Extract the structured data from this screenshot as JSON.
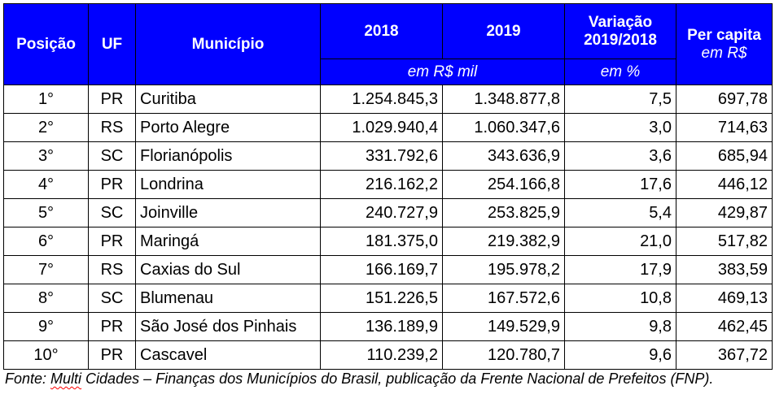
{
  "table": {
    "headers": {
      "position": "Posição",
      "uf": "UF",
      "municipality": "Município",
      "year_2018": "2018",
      "year_2019": "2019",
      "variation_line1": "Variação",
      "variation_line2": "2019/2018",
      "per_capita": "Per capita",
      "per_capita_unit": "em R$",
      "values_unit": "em R$ mil",
      "variation_unit": "em %"
    },
    "rows": [
      {
        "pos": "1°",
        "uf": "PR",
        "city": "Curitiba",
        "v2018": "1.254.845,3",
        "v2019": "1.348.877,8",
        "var": "7,5",
        "pc": "697,78"
      },
      {
        "pos": "2°",
        "uf": "RS",
        "city": "Porto Alegre",
        "v2018": "1.029.940,4",
        "v2019": "1.060.347,6",
        "var": "3,0",
        "pc": "714,63"
      },
      {
        "pos": "3°",
        "uf": "SC",
        "city": "Florianópolis",
        "v2018": "331.792,6",
        "v2019": "343.636,9",
        "var": "3,6",
        "pc": "685,94"
      },
      {
        "pos": "4°",
        "uf": "PR",
        "city": "Londrina",
        "v2018": "216.162,2",
        "v2019": "254.166,8",
        "var": "17,6",
        "pc": "446,12"
      },
      {
        "pos": "5°",
        "uf": "SC",
        "city": "Joinville",
        "v2018": "240.727,9",
        "v2019": "253.825,9",
        "var": "5,4",
        "pc": "429,87"
      },
      {
        "pos": "6°",
        "uf": "PR",
        "city": "Maringá",
        "v2018": "181.375,0",
        "v2019": "219.382,9",
        "var": "21,0",
        "pc": "517,82"
      },
      {
        "pos": "7°",
        "uf": "RS",
        "city": "Caxias do Sul",
        "v2018": "166.169,7",
        "v2019": "195.978,2",
        "var": "17,9",
        "pc": "383,59"
      },
      {
        "pos": "8°",
        "uf": "SC",
        "city": "Blumenau",
        "v2018": "151.226,5",
        "v2019": "167.572,6",
        "var": "10,8",
        "pc": "469,13"
      },
      {
        "pos": "9°",
        "uf": "PR",
        "city": "São José dos Pinhais",
        "v2018": "136.189,9",
        "v2019": "149.529,9",
        "var": "9,8",
        "pc": "462,45"
      },
      {
        "pos": "10°",
        "uf": "PR",
        "city": "Cascavel",
        "v2018": "110.239,2",
        "v2019": "120.780,7",
        "var": "9,6",
        "pc": "367,72"
      }
    ]
  },
  "source": {
    "prefix": "Fonte: ",
    "underlined_word": "Multi",
    "rest": " Cidades – Finanças dos Municípios do Brasil, publicação da Frente Nacional de Prefeitos (FNP)."
  },
  "colors": {
    "header_background": "#0000ff",
    "header_text": "#ffffff",
    "spellcheck_underline": "#ff0000"
  }
}
